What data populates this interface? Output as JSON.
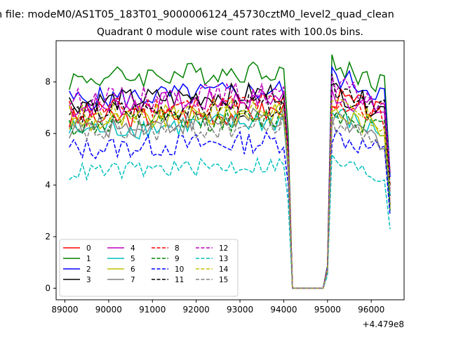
{
  "figure": {
    "suptitle": "n file: modeM0/AS1T05_183T01_9000006124_45730cztM0_level2_quad_clean",
    "offset_label": "+4.479e8"
  },
  "chart_data": {
    "type": "line",
    "title": "Quadrant 0 module wise count rates with 100.0s bins.",
    "xlabel": "",
    "ylabel": "",
    "x_offset": 447900000,
    "xlim": [
      88800,
      96750
    ],
    "ylim": [
      -0.45,
      9.6
    ],
    "x_ticks": [
      89000,
      90000,
      91000,
      92000,
      93000,
      94000,
      95000,
      96000
    ],
    "y_ticks": [
      0,
      2,
      4,
      6,
      8
    ],
    "grid": false,
    "legend": {
      "placement": "lower-left",
      "columns": 4
    },
    "gap": {
      "from": 94200,
      "to": 94900,
      "value": 0
    },
    "series": [
      {
        "name": "0",
        "color": "#ff0000",
        "dash": "solid",
        "level": 6.5,
        "post": 7.5
      },
      {
        "name": "1",
        "color": "#008000",
        "dash": "solid",
        "level": 8.1,
        "post": 8.7
      },
      {
        "name": "2",
        "color": "#0000ff",
        "dash": "solid",
        "level": 7.3,
        "post": 8.3
      },
      {
        "name": "3",
        "color": "#000000",
        "dash": "solid",
        "level": 7.2,
        "post": 7.7
      },
      {
        "name": "4",
        "color": "#bf00bf",
        "dash": "solid",
        "level": 7.0,
        "post": 7.6
      },
      {
        "name": "5",
        "color": "#00bfbf",
        "dash": "solid",
        "level": 6.1,
        "post": 6.8
      },
      {
        "name": "6",
        "color": "#bfbf00",
        "dash": "solid",
        "level": 6.4,
        "post": 6.9
      },
      {
        "name": "7",
        "color": "#808080",
        "dash": "solid",
        "level": 6.2,
        "post": 6.5
      },
      {
        "name": "8",
        "color": "#ff0000",
        "dash": "dashed",
        "level": 6.9,
        "post": 7.3
      },
      {
        "name": "9",
        "color": "#008000",
        "dash": "dashed",
        "level": 6.3,
        "post": 6.9
      },
      {
        "name": "10",
        "color": "#0000ff",
        "dash": "dashed",
        "level": 5.4,
        "post": 6.0
      },
      {
        "name": "11",
        "color": "#000000",
        "dash": "dashed",
        "level": 6.8,
        "post": 7.9
      },
      {
        "name": "12",
        "color": "#bf00bf",
        "dash": "dashed",
        "level": 7.3,
        "post": 7.9
      },
      {
        "name": "13",
        "color": "#00bfbf",
        "dash": "dashed",
        "level": 4.5,
        "post": 5.0
      },
      {
        "name": "14",
        "color": "#bfbf00",
        "dash": "dashed",
        "level": 6.7,
        "post": 7.1
      },
      {
        "name": "15",
        "color": "#808080",
        "dash": "dashed",
        "level": 6.0,
        "post": 6.5
      }
    ]
  }
}
